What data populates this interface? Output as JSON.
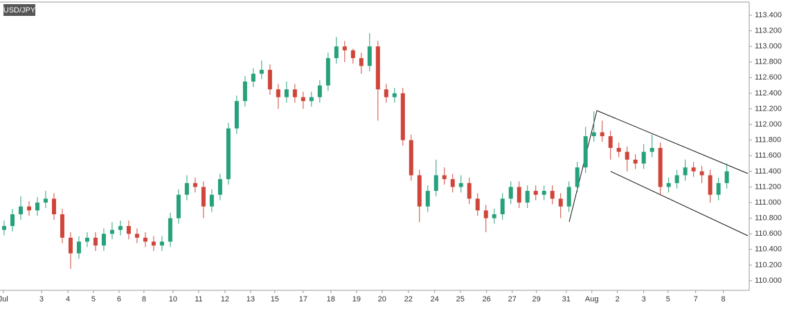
{
  "chart_data": {
    "type": "candlestick",
    "title": "USD/JPY",
    "open": [
      110.65,
      110.7,
      110.85,
      110.95,
      110.9,
      111.0,
      111.05,
      110.85,
      110.55,
      110.35,
      110.5,
      110.55,
      110.45,
      110.6,
      110.65,
      110.7,
      110.6,
      110.55,
      110.5,
      110.45,
      110.5,
      110.8,
      111.1,
      111.25,
      111.2,
      110.95,
      111.1,
      111.3,
      111.95,
      112.3,
      112.55,
      112.65,
      112.7,
      112.45,
      112.35,
      112.45,
      112.35,
      112.3,
      112.35,
      112.5,
      112.85,
      113.0,
      112.95,
      112.85,
      112.75,
      113.0,
      112.45,
      112.35,
      112.4,
      111.8,
      111.35,
      110.95,
      111.15,
      111.35,
      111.3,
      111.2,
      111.25,
      111.05,
      110.9,
      110.8,
      110.85,
      111.05,
      111.2,
      111.0,
      111.15,
      111.1,
      111.15,
      111.05,
      110.95,
      111.2,
      111.45,
      111.85,
      111.9,
      111.85,
      111.7,
      111.65,
      111.55,
      111.5,
      111.65,
      111.7,
      111.2,
      111.25,
      111.35,
      111.45,
      111.4,
      111.35,
      111.1,
      111.25
    ],
    "high": [
      110.77,
      110.92,
      111.08,
      111.02,
      111.07,
      111.15,
      111.12,
      110.92,
      110.62,
      110.57,
      110.62,
      110.62,
      110.67,
      110.75,
      110.77,
      110.77,
      110.67,
      110.62,
      110.57,
      110.57,
      110.87,
      111.17,
      111.35,
      111.32,
      111.27,
      111.17,
      111.37,
      112.02,
      112.37,
      112.62,
      112.72,
      112.82,
      112.77,
      112.52,
      112.55,
      112.52,
      112.42,
      112.42,
      112.57,
      112.92,
      113.12,
      113.07,
      112.97,
      112.92,
      113.17,
      113.07,
      112.52,
      112.47,
      112.47,
      111.87,
      111.42,
      111.22,
      111.55,
      111.45,
      111.37,
      111.35,
      111.32,
      111.12,
      110.97,
      110.92,
      111.12,
      111.27,
      111.27,
      111.22,
      111.22,
      111.22,
      111.22,
      111.12,
      111.27,
      111.52,
      111.97,
      112.17,
      112.05,
      111.92,
      111.77,
      111.72,
      111.62,
      111.75,
      111.87,
      111.77,
      111.32,
      111.42,
      111.55,
      111.52,
      111.47,
      111.42,
      111.32,
      111.5
    ],
    "low": [
      110.58,
      110.63,
      110.78,
      110.83,
      110.83,
      110.93,
      110.78,
      110.48,
      110.15,
      110.28,
      110.43,
      110.38,
      110.38,
      110.53,
      110.58,
      110.53,
      110.48,
      110.43,
      110.38,
      110.38,
      110.43,
      110.73,
      111.03,
      111.13,
      110.8,
      110.88,
      111.03,
      111.23,
      111.88,
      112.23,
      112.48,
      112.58,
      112.38,
      112.2,
      112.28,
      112.28,
      112.2,
      112.23,
      112.28,
      112.43,
      112.78,
      112.8,
      112.78,
      112.65,
      112.68,
      112.05,
      112.28,
      112.28,
      111.73,
      111.28,
      110.75,
      110.88,
      111.08,
      111.23,
      111.13,
      111.13,
      110.98,
      110.83,
      110.62,
      110.73,
      110.78,
      110.98,
      110.93,
      110.93,
      111.03,
      111.03,
      110.98,
      110.8,
      110.88,
      111.13,
      111.38,
      111.78,
      111.78,
      111.55,
      111.58,
      111.4,
      111.43,
      111.43,
      111.58,
      111.1,
      111.13,
      111.18,
      111.28,
      111.33,
      111.25,
      111.0,
      111.03,
      111.18
    ],
    "close": [
      110.7,
      110.85,
      110.95,
      110.9,
      111.0,
      111.05,
      110.85,
      110.55,
      110.35,
      110.5,
      110.55,
      110.45,
      110.6,
      110.65,
      110.7,
      110.6,
      110.55,
      110.5,
      110.45,
      110.5,
      110.8,
      111.1,
      111.25,
      111.2,
      110.95,
      111.1,
      111.3,
      111.95,
      112.3,
      112.55,
      112.65,
      112.7,
      112.45,
      112.35,
      112.45,
      112.35,
      112.3,
      112.35,
      112.5,
      112.85,
      113.0,
      112.95,
      112.85,
      112.75,
      113.0,
      112.45,
      112.35,
      112.4,
      111.8,
      111.35,
      110.95,
      111.15,
      111.35,
      111.3,
      111.2,
      111.25,
      111.05,
      110.9,
      110.8,
      110.85,
      111.05,
      111.2,
      111.0,
      111.15,
      111.1,
      111.15,
      111.05,
      110.95,
      111.2,
      111.45,
      111.85,
      111.9,
      111.85,
      111.7,
      111.65,
      111.55,
      111.5,
      111.65,
      111.7,
      111.2,
      111.25,
      111.35,
      111.45,
      111.4,
      111.35,
      111.1,
      111.25,
      111.4
    ],
    "up_color": "#26a17b",
    "down_color": "#d0453a",
    "xlim": [
      0,
      90.2
    ],
    "xticks": [
      {
        "value": 0.4,
        "label": "Jul"
      },
      {
        "value": 5,
        "label": "3"
      },
      {
        "value": 8.17,
        "label": "4"
      },
      {
        "value": 11.25,
        "label": "5"
      },
      {
        "value": 14.33,
        "label": "6"
      },
      {
        "value": 17.33,
        "label": "8"
      },
      {
        "value": 20.83,
        "label": "10"
      },
      {
        "value": 23.92,
        "label": "11"
      },
      {
        "value": 27.08,
        "label": "12"
      },
      {
        "value": 30.17,
        "label": "13"
      },
      {
        "value": 33.08,
        "label": "15"
      },
      {
        "value": 36.5,
        "label": "17"
      },
      {
        "value": 39.83,
        "label": "18"
      },
      {
        "value": 42.92,
        "label": "19"
      },
      {
        "value": 46,
        "label": "20"
      },
      {
        "value": 49.17,
        "label": "22"
      },
      {
        "value": 52.33,
        "label": "24"
      },
      {
        "value": 55.42,
        "label": "25"
      },
      {
        "value": 58.58,
        "label": "26"
      },
      {
        "value": 61.67,
        "label": "27"
      },
      {
        "value": 64.58,
        "label": "29"
      },
      {
        "value": 68.17,
        "label": "31"
      },
      {
        "value": 71.25,
        "label": "Aug"
      },
      {
        "value": 74.33,
        "label": "2"
      },
      {
        "value": 77.5,
        "label": "3"
      },
      {
        "value": 80.42,
        "label": "5"
      },
      {
        "value": 83.75,
        "label": "7"
      },
      {
        "value": 87.08,
        "label": "8"
      }
    ],
    "ylim": [
      109.876,
      113.568
    ],
    "yticks": [
      {
        "value": 113.4,
        "label": "113.400"
      },
      {
        "value": 113.2,
        "label": "113.200"
      },
      {
        "value": 113.0,
        "label": "113.000"
      },
      {
        "value": 112.8,
        "label": "112.800"
      },
      {
        "value": 112.6,
        "label": "112.600"
      },
      {
        "value": 112.4,
        "label": "112.400"
      },
      {
        "value": 112.2,
        "label": "112.200"
      },
      {
        "value": 112.0,
        "label": "112.000"
      },
      {
        "value": 111.8,
        "label": "111.800"
      },
      {
        "value": 111.6,
        "label": "111.600"
      },
      {
        "value": 111.4,
        "label": "111.400"
      },
      {
        "value": 111.2,
        "label": "111.200"
      },
      {
        "value": 111.0,
        "label": "111.000"
      },
      {
        "value": 110.8,
        "label": "110.800"
      },
      {
        "value": 110.6,
        "label": "110.600"
      },
      {
        "value": 110.4,
        "label": "110.400"
      },
      {
        "value": 110.2,
        "label": "110.200"
      },
      {
        "value": 110.0,
        "label": "110.000"
      }
    ]
  }
}
